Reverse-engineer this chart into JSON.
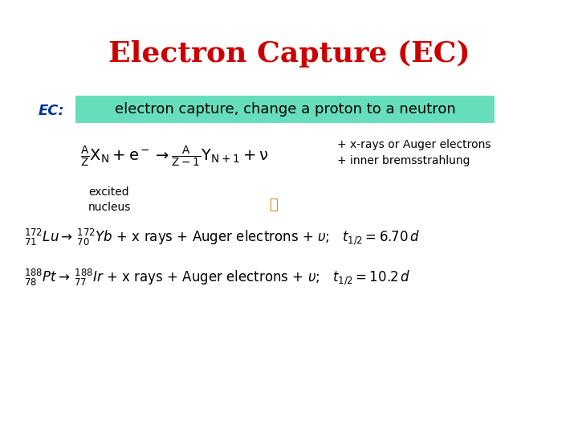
{
  "title": "Electron Capture (EC)",
  "title_color": "#cc0000",
  "title_fontsize": 26,
  "bg_color": "#ffffff",
  "ec_label": "EC:",
  "ec_label_color": "#003399",
  "ec_label_fontsize": 13,
  "highlight_text": "electron capture, change a proton to a neutron",
  "highlight_bg": "#66ddbb",
  "highlight_fontsize": 13,
  "annotation_right": "+ x-rays or Auger electrons\n+ inner bremsstrahlung",
  "annotation_left": "excited\nnucleus",
  "annotation_fontsize": 10,
  "example_fontsize": 12
}
